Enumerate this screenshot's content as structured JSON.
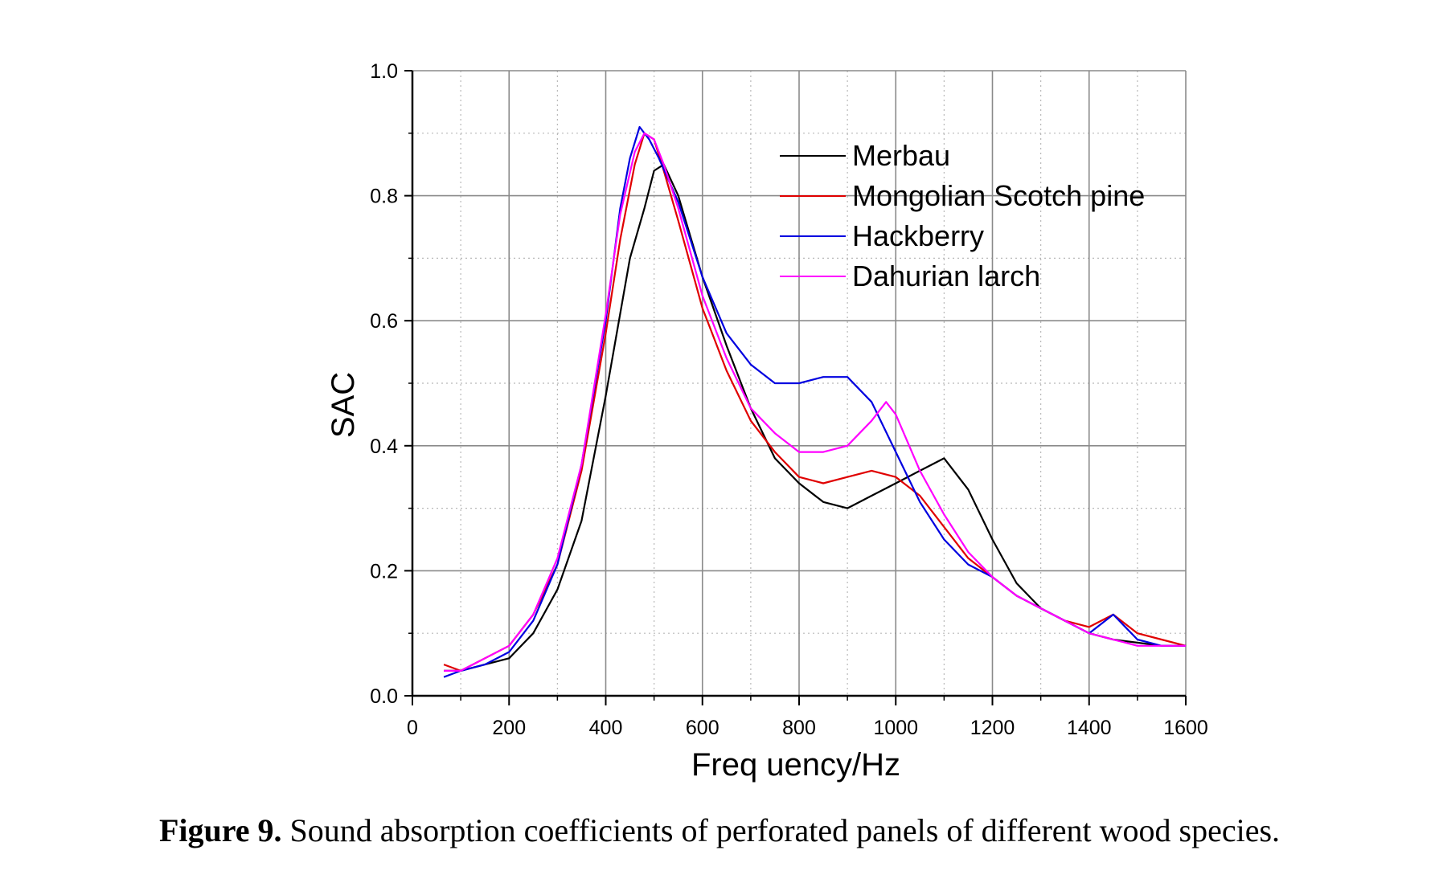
{
  "chart_data": {
    "type": "line",
    "xlabel": "Freq uency/Hz",
    "ylabel": "SAC",
    "xlim": [
      0,
      1600
    ],
    "ylim": [
      0.0,
      1.0
    ],
    "xticks": [
      "0",
      "200",
      "400",
      "600",
      "800",
      "1000",
      "1200",
      "1400",
      "1600"
    ],
    "yticks": [
      "0.0",
      "0.2",
      "0.4",
      "0.6",
      "0.8",
      "1.0"
    ],
    "grid": true,
    "legend_position": "top-right",
    "series": [
      {
        "name": "Merbau",
        "color": "#000000",
        "x": [
          65,
          100,
          150,
          200,
          250,
          300,
          350,
          400,
          450,
          480,
          500,
          520,
          550,
          600,
          650,
          700,
          750,
          800,
          850,
          900,
          950,
          1000,
          1050,
          1100,
          1150,
          1200,
          1250,
          1300,
          1350,
          1400,
          1450,
          1500,
          1550,
          1600
        ],
        "y": [
          0.04,
          0.04,
          0.05,
          0.06,
          0.1,
          0.17,
          0.28,
          0.48,
          0.7,
          0.78,
          0.84,
          0.85,
          0.8,
          0.67,
          0.56,
          0.46,
          0.38,
          0.34,
          0.31,
          0.3,
          0.32,
          0.34,
          0.36,
          0.38,
          0.33,
          0.25,
          0.18,
          0.14,
          0.12,
          0.1,
          0.09,
          0.085,
          0.08,
          0.08
        ]
      },
      {
        "name": "Mongolian Scotch pine",
        "color": "#e00000",
        "x": [
          65,
          100,
          150,
          200,
          250,
          300,
          350,
          400,
          430,
          460,
          480,
          500,
          520,
          550,
          600,
          650,
          700,
          750,
          800,
          850,
          900,
          950,
          1000,
          1050,
          1100,
          1150,
          1200,
          1250,
          1300,
          1350,
          1400,
          1450,
          1500,
          1550,
          1600
        ],
        "y": [
          0.05,
          0.04,
          0.06,
          0.08,
          0.13,
          0.21,
          0.36,
          0.58,
          0.73,
          0.85,
          0.9,
          0.89,
          0.84,
          0.76,
          0.62,
          0.52,
          0.44,
          0.39,
          0.35,
          0.34,
          0.35,
          0.36,
          0.35,
          0.32,
          0.27,
          0.22,
          0.19,
          0.16,
          0.14,
          0.12,
          0.11,
          0.13,
          0.1,
          0.09,
          0.08
        ]
      },
      {
        "name": "Hackberry",
        "color": "#0000e0",
        "x": [
          65,
          100,
          150,
          200,
          250,
          300,
          350,
          400,
          430,
          450,
          470,
          490,
          510,
          550,
          600,
          650,
          700,
          750,
          800,
          850,
          900,
          950,
          1000,
          1050,
          1100,
          1150,
          1200,
          1250,
          1300,
          1350,
          1400,
          1450,
          1500,
          1550,
          1600
        ],
        "y": [
          0.03,
          0.04,
          0.05,
          0.07,
          0.12,
          0.21,
          0.37,
          0.6,
          0.78,
          0.86,
          0.91,
          0.89,
          0.86,
          0.79,
          0.67,
          0.58,
          0.53,
          0.5,
          0.5,
          0.51,
          0.51,
          0.47,
          0.39,
          0.31,
          0.25,
          0.21,
          0.19,
          0.16,
          0.14,
          0.12,
          0.1,
          0.13,
          0.09,
          0.08,
          0.08
        ]
      },
      {
        "name": "Dahurian larch",
        "color": "#ff00ff",
        "x": [
          65,
          100,
          150,
          200,
          250,
          300,
          350,
          400,
          430,
          460,
          480,
          500,
          520,
          550,
          600,
          650,
          700,
          750,
          800,
          850,
          900,
          950,
          980,
          1000,
          1050,
          1100,
          1150,
          1200,
          1250,
          1300,
          1350,
          1400,
          1450,
          1500,
          1550,
          1600
        ],
        "y": [
          0.04,
          0.04,
          0.06,
          0.08,
          0.13,
          0.22,
          0.37,
          0.61,
          0.77,
          0.87,
          0.9,
          0.89,
          0.85,
          0.78,
          0.64,
          0.54,
          0.46,
          0.42,
          0.39,
          0.39,
          0.4,
          0.44,
          0.47,
          0.45,
          0.36,
          0.29,
          0.23,
          0.19,
          0.16,
          0.14,
          0.12,
          0.1,
          0.09,
          0.08,
          0.08,
          0.08
        ]
      }
    ]
  },
  "caption": {
    "label": "Figure 9.",
    "text": "Sound absorption coefficients of perforated panels of different wood species."
  }
}
